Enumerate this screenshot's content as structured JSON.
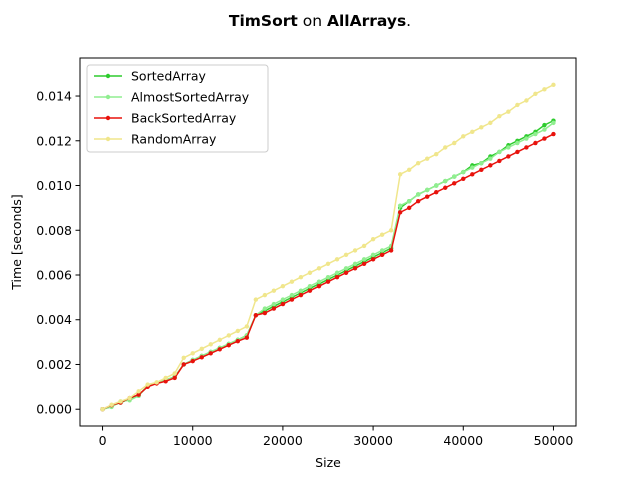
{
  "chart_data": {
    "type": "line",
    "title_parts": [
      {
        "text": "TimSort",
        "bold": true
      },
      {
        "text": " on ",
        "bold": false
      },
      {
        "text": "AllArrays",
        "bold": true
      },
      {
        "text": ".",
        "bold": false
      }
    ],
    "xlabel": "Size",
    "ylabel": "Time [seconds]",
    "xlim": [
      -2500,
      52500
    ],
    "ylim": [
      -0.00075,
      0.0157
    ],
    "xticks": [
      0,
      10000,
      20000,
      30000,
      40000,
      50000
    ],
    "yticks": [
      0.0,
      0.002,
      0.004,
      0.006,
      0.008,
      0.01,
      0.012,
      0.014
    ],
    "xtick_labels": [
      "0",
      "10000",
      "20000",
      "30000",
      "40000",
      "50000"
    ],
    "ytick_labels": [
      "0.000",
      "0.002",
      "0.004",
      "0.006",
      "0.008",
      "0.010",
      "0.012",
      "0.014"
    ],
    "legend_position": "top-left",
    "grid": false,
    "series": [
      {
        "name": "SortedArray",
        "color": "#2ecc2e",
        "x": [
          0,
          1000,
          2000,
          3000,
          4000,
          5000,
          6000,
          7000,
          8000,
          9000,
          10000,
          11000,
          12000,
          13000,
          14000,
          15000,
          16000,
          17000,
          18000,
          19000,
          20000,
          21000,
          22000,
          23000,
          24000,
          25000,
          26000,
          27000,
          28000,
          29000,
          30000,
          31000,
          32000,
          33000,
          34000,
          35000,
          36000,
          37000,
          38000,
          39000,
          40000,
          41000,
          42000,
          43000,
          44000,
          45000,
          46000,
          47000,
          48000,
          49000,
          50000
        ],
        "y": [
          0.0,
          0.00015,
          0.0003,
          0.00045,
          0.0006,
          0.00105,
          0.00118,
          0.0013,
          0.00145,
          0.002,
          0.0022,
          0.00238,
          0.00256,
          0.00274,
          0.00292,
          0.0031,
          0.0033,
          0.0042,
          0.0044,
          0.0046,
          0.0048,
          0.005,
          0.0052,
          0.0054,
          0.0056,
          0.0058,
          0.006,
          0.0062,
          0.0064,
          0.0066,
          0.0068,
          0.007,
          0.0072,
          0.009,
          0.0093,
          0.0096,
          0.0098,
          0.01,
          0.0102,
          0.0104,
          0.0106,
          0.0109,
          0.011,
          0.0113,
          0.0115,
          0.0118,
          0.012,
          0.0122,
          0.0124,
          0.0127,
          0.0129
        ]
      },
      {
        "name": "AlmostSortedArray",
        "color": "#90ee90",
        "x": [
          0,
          1000,
          2000,
          3000,
          4000,
          5000,
          6000,
          7000,
          8000,
          9000,
          10000,
          11000,
          12000,
          13000,
          14000,
          15000,
          16000,
          17000,
          18000,
          19000,
          20000,
          21000,
          22000,
          23000,
          24000,
          25000,
          26000,
          27000,
          28000,
          29000,
          30000,
          31000,
          32000,
          33000,
          34000,
          35000,
          36000,
          37000,
          38000,
          39000,
          40000,
          41000,
          42000,
          43000,
          44000,
          45000,
          46000,
          47000,
          48000,
          49000,
          50000
        ],
        "y": [
          0.0,
          0.0001,
          0.00035,
          0.0004,
          0.0006,
          0.00105,
          0.00118,
          0.0013,
          0.00145,
          0.002,
          0.0022,
          0.00238,
          0.00256,
          0.00274,
          0.00292,
          0.0031,
          0.0033,
          0.0042,
          0.0045,
          0.0047,
          0.0049,
          0.0051,
          0.0053,
          0.0055,
          0.0057,
          0.0059,
          0.0061,
          0.0063,
          0.0065,
          0.0067,
          0.0069,
          0.0071,
          0.0073,
          0.0091,
          0.0093,
          0.0096,
          0.0098,
          0.01,
          0.0102,
          0.0104,
          0.0106,
          0.0108,
          0.011,
          0.0112,
          0.0115,
          0.0117,
          0.0119,
          0.0121,
          0.0123,
          0.0125,
          0.0128
        ]
      },
      {
        "name": "BackSortedArray",
        "color": "#e8120c",
        "x": [
          0,
          1000,
          2000,
          3000,
          4000,
          5000,
          6000,
          7000,
          8000,
          9000,
          10000,
          11000,
          12000,
          13000,
          14000,
          15000,
          16000,
          17000,
          18000,
          19000,
          20000,
          21000,
          22000,
          23000,
          24000,
          25000,
          26000,
          27000,
          28000,
          29000,
          30000,
          31000,
          32000,
          33000,
          34000,
          35000,
          36000,
          37000,
          38000,
          39000,
          40000,
          41000,
          42000,
          43000,
          44000,
          45000,
          46000,
          47000,
          48000,
          49000,
          50000
        ],
        "y": [
          0.0,
          0.00018,
          0.0003,
          0.0005,
          0.00065,
          0.001,
          0.00115,
          0.00125,
          0.0014,
          0.002,
          0.00215,
          0.00232,
          0.0025,
          0.00268,
          0.00286,
          0.00304,
          0.0032,
          0.0042,
          0.0043,
          0.0045,
          0.0047,
          0.0049,
          0.0051,
          0.0053,
          0.0055,
          0.0057,
          0.0059,
          0.0061,
          0.0063,
          0.0065,
          0.0067,
          0.0069,
          0.0071,
          0.0088,
          0.009,
          0.0093,
          0.0095,
          0.0097,
          0.0099,
          0.0101,
          0.0103,
          0.0105,
          0.0107,
          0.0109,
          0.0111,
          0.0113,
          0.0115,
          0.0117,
          0.0119,
          0.0121,
          0.0123
        ]
      },
      {
        "name": "RandomArray",
        "color": "#f0e68c",
        "x": [
          0,
          1000,
          2000,
          3000,
          4000,
          5000,
          6000,
          7000,
          8000,
          9000,
          10000,
          11000,
          12000,
          13000,
          14000,
          15000,
          16000,
          17000,
          18000,
          19000,
          20000,
          21000,
          22000,
          23000,
          24000,
          25000,
          26000,
          27000,
          28000,
          29000,
          30000,
          31000,
          32000,
          33000,
          34000,
          35000,
          36000,
          37000,
          38000,
          39000,
          40000,
          41000,
          42000,
          43000,
          44000,
          45000,
          46000,
          47000,
          48000,
          49000,
          50000
        ],
        "y": [
          0.0,
          0.0002,
          0.00035,
          0.0005,
          0.0008,
          0.0011,
          0.0012,
          0.0014,
          0.0016,
          0.0023,
          0.0025,
          0.0027,
          0.0029,
          0.0031,
          0.0033,
          0.0035,
          0.0037,
          0.0049,
          0.0051,
          0.0053,
          0.0055,
          0.0057,
          0.0059,
          0.0061,
          0.0063,
          0.0065,
          0.0067,
          0.0069,
          0.0071,
          0.0073,
          0.0076,
          0.0078,
          0.008,
          0.0105,
          0.0107,
          0.011,
          0.0112,
          0.0114,
          0.0117,
          0.0119,
          0.0122,
          0.0124,
          0.0126,
          0.0128,
          0.0131,
          0.0133,
          0.0136,
          0.0138,
          0.0141,
          0.0143,
          0.0145
        ]
      }
    ]
  }
}
